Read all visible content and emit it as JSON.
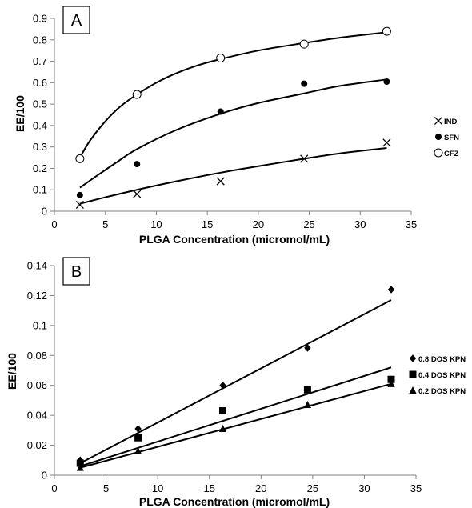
{
  "chart_data": [
    {
      "type": "scatter",
      "panel_label": "A",
      "xlabel": "PLGA Concentration (micromol/mL)",
      "ylabel": "EE/100",
      "xlim": [
        0,
        35
      ],
      "ylim": [
        0,
        0.9
      ],
      "xticks": [
        0,
        5,
        10,
        15,
        20,
        25,
        30,
        35
      ],
      "yticks": [
        0,
        0.1,
        0.2,
        0.3,
        0.4,
        0.5,
        0.6,
        0.7,
        0.8,
        0.9
      ],
      "x": [
        2.5,
        8.1,
        16.3,
        24.5,
        32.6
      ],
      "grid": false,
      "legend_position": "right",
      "series": [
        {
          "name": "IND",
          "marker": "x",
          "values": [
            0.03,
            0.08,
            0.14,
            0.245,
            0.32
          ],
          "fit": {
            "x": [
              2.5,
              5,
              8.1,
              12,
              16.3,
              20,
              24.5,
              28,
              32.6
            ],
            "y": [
              0.035,
              0.065,
              0.1,
              0.14,
              0.18,
              0.21,
              0.245,
              0.27,
              0.295
            ]
          }
        },
        {
          "name": "SFN",
          "marker": "filled-circle",
          "values": [
            0.075,
            0.22,
            0.465,
            0.595,
            0.605
          ],
          "fit": {
            "x": [
              2.5,
              4,
              6,
              8.1,
              12,
              16.3,
              20,
              24.5,
              28,
              32.6
            ],
            "y": [
              0.11,
              0.16,
              0.225,
              0.29,
              0.38,
              0.455,
              0.505,
              0.55,
              0.585,
              0.615
            ]
          }
        },
        {
          "name": "CFZ",
          "marker": "open-circle",
          "values": [
            0.245,
            0.545,
            0.715,
            0.78,
            0.84
          ],
          "fit": {
            "x": [
              2.5,
              3.5,
              5,
              6.5,
              8.1,
              10,
              12,
              14,
              16.3,
              20,
              24.5,
              28,
              32.6
            ],
            "y": [
              0.25,
              0.33,
              0.42,
              0.49,
              0.545,
              0.6,
              0.645,
              0.68,
              0.71,
              0.75,
              0.785,
              0.81,
              0.835
            ]
          }
        }
      ]
    },
    {
      "type": "scatter",
      "panel_label": "B",
      "xlabel": "PLGA Concentration (micromol/mL)",
      "ylabel": "EE/100",
      "xlim": [
        0,
        35
      ],
      "ylim": [
        0,
        0.14
      ],
      "xticks": [
        0,
        5,
        10,
        15,
        20,
        25,
        30,
        35
      ],
      "yticks": [
        0,
        0.02,
        0.04,
        0.06,
        0.08,
        0.1,
        0.12,
        0.14
      ],
      "x": [
        2.5,
        8.1,
        16.3,
        24.5,
        32.6
      ],
      "grid": false,
      "legend_position": "right",
      "series": [
        {
          "name": "0.8 DOS KPN",
          "marker": "diamond",
          "values": [
            0.01,
            0.031,
            0.06,
            0.085,
            0.124
          ],
          "fit": {
            "x": [
              2.5,
              32.6
            ],
            "y": [
              0.008,
              0.117
            ]
          }
        },
        {
          "name": "0.4 DOS KPN",
          "marker": "square",
          "values": [
            0.008,
            0.025,
            0.043,
            0.057,
            0.064
          ],
          "fit": {
            "x": [
              2.5,
              32.6
            ],
            "y": [
              0.006,
              0.072
            ]
          }
        },
        {
          "name": "0.2 DOS KPN",
          "marker": "triangle",
          "values": [
            0.005,
            0.016,
            0.031,
            0.047,
            0.061
          ],
          "fit": {
            "x": [
              2.5,
              32.6
            ],
            "y": [
              0.005,
              0.061
            ]
          }
        }
      ]
    }
  ]
}
